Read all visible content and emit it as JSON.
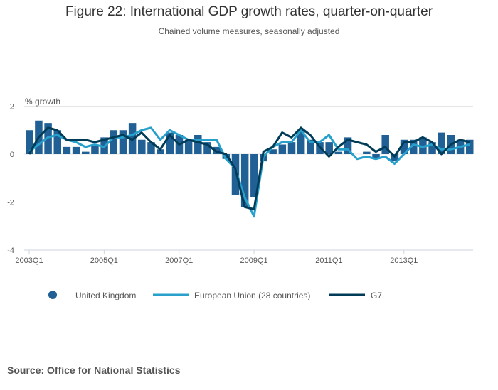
{
  "chart_data": {
    "type": "bar+line",
    "title": "Figure 22: International GDP growth rates, quarter-on-quarter",
    "subtitle": "Chained volume measures, seasonally adjusted",
    "ylabel": "% growth",
    "ylim": [
      -4,
      2
    ],
    "yticks": [
      2,
      0,
      -2,
      -4
    ],
    "xtick_labels": [
      "2003Q1",
      "2005Q1",
      "2007Q1",
      "2009Q1",
      "2011Q1",
      "2013Q1"
    ],
    "x_start": "2003Q1",
    "n_quarters": 48,
    "legend_position": "bottom",
    "series": [
      {
        "name": "United Kingdom",
        "type": "bar",
        "color": "#206095",
        "values": [
          1.0,
          1.4,
          1.3,
          1.0,
          0.3,
          0.3,
          0.1,
          0.4,
          0.7,
          1.0,
          1.0,
          1.3,
          0.6,
          0.5,
          0.2,
          0.9,
          0.8,
          0.6,
          0.8,
          0.5,
          0.3,
          -0.2,
          -1.7,
          -2.2,
          -1.8,
          -0.3,
          0.2,
          0.4,
          0.5,
          1.0,
          0.6,
          0.5,
          0.5,
          0.1,
          0.7,
          0.0,
          0.1,
          -0.2,
          0.8,
          -0.3,
          0.6,
          0.6,
          0.7,
          0.5,
          0.9,
          0.8,
          0.6,
          0.6
        ]
      },
      {
        "name": "European Union (28 countries)",
        "type": "line",
        "color": "#27a0cc",
        "values": [
          0.1,
          0.4,
          0.7,
          0.8,
          0.6,
          0.5,
          0.3,
          0.4,
          0.3,
          0.7,
          0.7,
          0.8,
          1.0,
          1.1,
          0.6,
          1.0,
          0.8,
          0.6,
          0.6,
          0.6,
          0.6,
          -0.2,
          -0.6,
          -1.8,
          -2.6,
          -0.1,
          0.3,
          0.5,
          0.5,
          1.0,
          0.5,
          0.5,
          0.8,
          0.2,
          0.2,
          -0.2,
          -0.1,
          -0.2,
          -0.1,
          -0.4,
          0.0,
          0.4,
          0.3,
          0.4,
          0.2,
          0.2,
          0.3,
          0.4
        ]
      },
      {
        "name": "G7",
        "type": "line",
        "color": "#003c57",
        "values": [
          0.0,
          0.7,
          1.1,
          1.0,
          0.6,
          0.6,
          0.6,
          0.5,
          0.6,
          0.7,
          0.8,
          0.6,
          0.9,
          0.5,
          0.2,
          0.8,
          0.4,
          0.6,
          0.5,
          0.4,
          0.1,
          0.0,
          -0.6,
          -2.2,
          -2.3,
          0.1,
          0.3,
          0.9,
          0.7,
          1.1,
          0.8,
          0.3,
          -0.1,
          0.3,
          0.6,
          0.5,
          0.4,
          0.1,
          0.3,
          -0.1,
          0.5,
          0.5,
          0.7,
          0.5,
          0.0,
          0.4,
          0.6,
          0.5
        ]
      }
    ]
  },
  "source": "Source: Office for National Statistics"
}
